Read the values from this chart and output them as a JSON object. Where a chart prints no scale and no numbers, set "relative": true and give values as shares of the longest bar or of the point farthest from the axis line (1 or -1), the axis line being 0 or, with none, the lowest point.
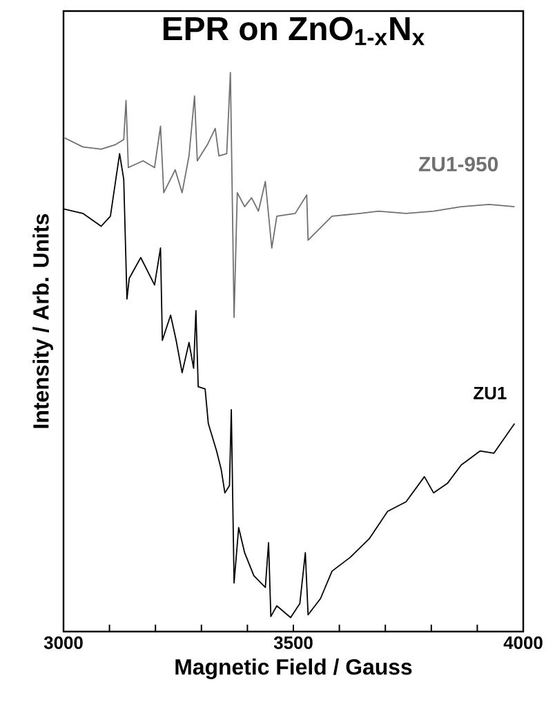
{
  "chart_data": {
    "type": "line",
    "title": "EPR on ZnO$_{1-x}$N$_{x}$",
    "xlabel": "Magnetic Field / Gauss",
    "ylabel": "Intensity / Arb. Units",
    "relative": true,
    "tick_labels": "x",
    "xlim": [
      3000,
      4000
    ],
    "xticks": [
      3000,
      {
        "value": 3100,
        "label": null
      },
      {
        "value": 3200,
        "label": null
      },
      {
        "value": 3300,
        "label": null
      },
      {
        "value": 3400,
        "label": null
      },
      3500,
      {
        "value": 3600,
        "label": null
      },
      {
        "value": 3700,
        "label": null
      },
      {
        "value": 3800,
        "label": null
      },
      {
        "value": 3900,
        "label": null
      },
      4000
    ],
    "series": [
      {
        "name": "ZU1-950",
        "color": "#707070",
        "x": [
          3000,
          3042,
          3082,
          3113,
          3131,
          3136,
          3141,
          3173,
          3198,
          3211,
          3218,
          3243,
          3258,
          3273,
          3285,
          3291,
          3313,
          3330,
          3338,
          3355,
          3363,
          3371,
          3378,
          3394,
          3409,
          3424,
          3439,
          3453,
          3464,
          3504,
          3529,
          3532,
          3584,
          3645,
          3685,
          3745,
          3805,
          3865,
          3926,
          3981
        ],
        "values": [
          0.884,
          0.867,
          0.863,
          0.871,
          0.88,
          0.95,
          0.83,
          0.842,
          0.83,
          0.904,
          0.785,
          0.826,
          0.785,
          0.851,
          0.958,
          0.842,
          0.871,
          0.9,
          0.851,
          0.855,
          1.0,
          0.562,
          0.785,
          0.76,
          0.776,
          0.752,
          0.805,
          0.686,
          0.743,
          0.748,
          0.781,
          0.7,
          0.743,
          0.748,
          0.752,
          0.748,
          0.752,
          0.76,
          0.764,
          0.76
        ]
      },
      {
        "name": "ZU1",
        "color": "#000000",
        "x": [
          3000,
          3042,
          3082,
          3102,
          3122,
          3131,
          3138,
          3143,
          3168,
          3198,
          3211,
          3215,
          3233,
          3245,
          3258,
          3273,
          3283,
          3288,
          3293,
          3308,
          3315,
          3333,
          3343,
          3351,
          3361,
          3365,
          3371,
          3381,
          3394,
          3414,
          3439,
          3446,
          3451,
          3464,
          3494,
          3514,
          3526,
          3532,
          3559,
          3584,
          3624,
          3665,
          3705,
          3745,
          3785,
          3805,
          3835,
          3865,
          3906,
          3936,
          3981
        ],
        "values": [
          0.756,
          0.748,
          0.725,
          0.743,
          0.855,
          0.809,
          0.595,
          0.632,
          0.669,
          0.62,
          0.686,
          0.521,
          0.566,
          0.521,
          0.463,
          0.517,
          0.471,
          0.574,
          0.438,
          0.434,
          0.372,
          0.323,
          0.29,
          0.248,
          0.261,
          0.397,
          0.087,
          0.186,
          0.141,
          0.1,
          0.079,
          0.159,
          0.027,
          0.046,
          0.025,
          0.05,
          0.141,
          0.03,
          0.059,
          0.108,
          0.133,
          0.166,
          0.215,
          0.232,
          0.277,
          0.248,
          0.265,
          0.298,
          0.323,
          0.319,
          0.372
        ]
      }
    ]
  }
}
